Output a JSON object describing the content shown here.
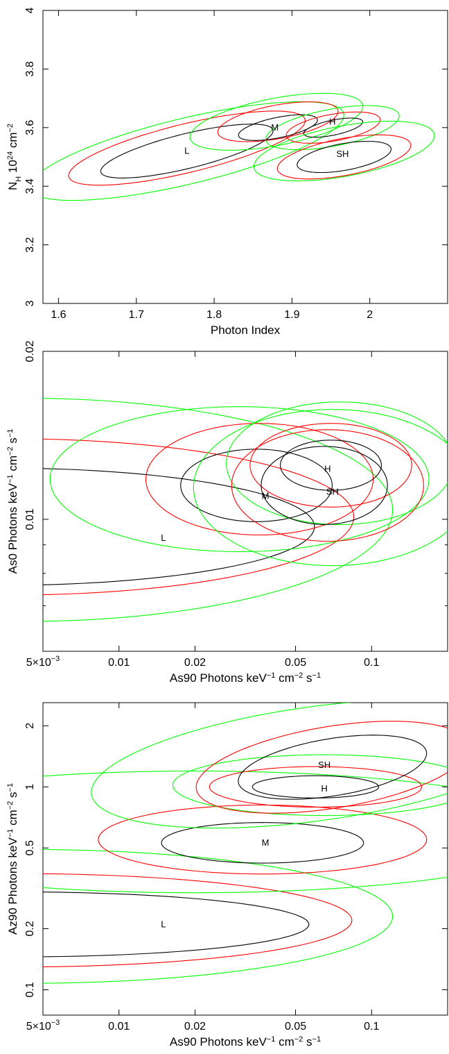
{
  "colors": {
    "inner": "#000000",
    "middle": "#ff0000",
    "outer": "#00ff00"
  },
  "chart_data": [
    {
      "type": "contour",
      "xscale": "linear",
      "yscale": "linear",
      "xlim": [
        1.58,
        2.1
      ],
      "ylim": [
        3.0,
        4.0
      ],
      "xlabel": "Photon Index",
      "ylabel_parts": [
        "N",
        "H",
        " 10",
        "24",
        " cm",
        "−2"
      ],
      "xticks": [
        1.6,
        1.7,
        1.8,
        1.9,
        2.0
      ],
      "xtick_labels": [
        "1.6",
        "1.7",
        "1.8",
        "1.9",
        "2"
      ],
      "yticks": [
        3.0,
        3.2,
        3.4,
        3.6,
        3.8,
        4.0
      ],
      "ytick_labels": [
        "3",
        "3.2",
        "3.4",
        "3.6",
        "3.8",
        "4"
      ],
      "regions": [
        {
          "label": "L",
          "label_x": 1.765,
          "label_y": 3.52,
          "contours": {
            "inner": [
              1.765,
              3.52,
              0.135,
              0.05,
              38
            ],
            "middle": [
              1.765,
              3.53,
              0.185,
              0.07,
              38
            ],
            "outer": [
              1.765,
              3.52,
              0.245,
              0.095,
              38
            ]
          }
        },
        {
          "label": "M",
          "label_x": 1.878,
          "label_y": 3.6,
          "contours": {
            "inner": [
              1.882,
              3.6,
              0.06,
              0.03,
              38
            ],
            "middle": [
              1.882,
              3.62,
              0.09,
              0.05,
              38
            ],
            "outer": [
              1.88,
              3.62,
              0.13,
              0.07,
              38
            ]
          }
        },
        {
          "label": "H",
          "label_x": 1.952,
          "label_y": 3.62,
          "contours": {
            "inner": [
              1.953,
              3.6,
              0.045,
              0.022,
              38
            ],
            "middle": [
              1.953,
              3.6,
              0.07,
              0.04,
              38
            ],
            "outer": [
              1.952,
              3.6,
              0.1,
              0.055,
              38
            ]
          }
        },
        {
          "label": "SH",
          "label_x": 1.965,
          "label_y": 3.51,
          "contours": {
            "inner": [
              1.967,
              3.5,
              0.07,
              0.04,
              38
            ],
            "middle": [
              1.967,
              3.5,
              0.1,
              0.055,
              38
            ],
            "outer": [
              1.967,
              3.52,
              0.135,
              0.075,
              38
            ]
          }
        }
      ]
    },
    {
      "type": "contour",
      "xscale": "log",
      "yscale": "log",
      "xlim": [
        0.005,
        0.2
      ],
      "ylim": [
        0.0058,
        0.02
      ],
      "xlabel_parts": [
        "As90 Photons keV",
        "−1",
        "  cm",
        "−2",
        "  s",
        "−1"
      ],
      "ylabel_parts": [
        "As0 Photons keV",
        "−1",
        "  cm",
        "−2",
        "  s",
        "−1"
      ],
      "xticks": [
        0.005,
        0.01,
        0.02,
        0.05,
        0.1
      ],
      "xtick_labels": [
        "5×10",
        "0.01",
        "0.02",
        "0.05",
        "0.1"
      ],
      "xtick_sup": [
        "−3",
        "",
        "",
        "",
        ""
      ],
      "yticks": [
        0.01,
        0.02
      ],
      "ytick_labels": [
        "0.01",
        "0.02"
      ],
      "minor_yticks": [
        0.007,
        0.008,
        0.009
      ],
      "regions": [
        {
          "label": "L",
          "label_x": 0.015,
          "label_y": 0.00925,
          "contours": {
            "inner": [
              0.0035,
              0.0097,
              1.23,
              0.105,
              0
            ],
            "middle": [
              0.0038,
              0.0101,
              1.35,
              0.14,
              0
            ],
            "outer": [
              0.0043,
              0.0104,
              1.45,
              0.2,
              0
            ]
          }
        },
        {
          "label": "M",
          "label_x": 0.038,
          "label_y": 0.011,
          "contours": {
            "inner": [
              0.035,
              0.0115,
              0.3,
              0.065,
              0
            ],
            "middle": [
              0.036,
              0.0118,
              0.45,
              0.1,
              0
            ],
            "outer": [
              0.03,
              0.0118,
              0.75,
              0.13,
              0
            ]
          }
        },
        {
          "label": "H",
          "label_x": 0.067,
          "label_y": 0.0123,
          "contours": {
            "inner": [
              0.069,
              0.0125,
              0.2,
              0.045,
              0
            ],
            "middle": [
              0.069,
              0.0125,
              0.32,
              0.075,
              0
            ],
            "outer": [
              0.075,
              0.0126,
              0.45,
              0.11,
              0
            ]
          }
        },
        {
          "label": "SH",
          "label_x": 0.07,
          "label_y": 0.0112,
          "contours": {
            "inner": [
              0.065,
              0.0115,
              0.25,
              0.07,
              0
            ],
            "middle": [
              0.067,
              0.0115,
              0.38,
              0.1,
              0
            ],
            "outer": [
              0.07,
              0.0114,
              0.55,
              0.14,
              0
            ]
          }
        }
      ]
    },
    {
      "type": "contour",
      "xscale": "log",
      "yscale": "log",
      "xlim": [
        0.005,
        0.2
      ],
      "ylim": [
        0.075,
        2.6
      ],
      "xlabel_parts": [
        "As90 Photons keV",
        "−1",
        "  cm",
        "−2",
        "  s",
        "−1"
      ],
      "ylabel_parts": [
        "Az90 Photons keV",
        "−1",
        "  cm",
        "−2",
        "  s",
        "−1"
      ],
      "xticks": [
        0.005,
        0.01,
        0.02,
        0.05,
        0.1
      ],
      "xtick_labels": [
        "5×10",
        "0.01",
        "0.02",
        "0.05",
        "0.1"
      ],
      "xtick_sup": [
        "−3",
        "",
        "",
        "",
        ""
      ],
      "yticks": [
        0.1,
        0.2,
        0.5,
        1,
        2
      ],
      "ytick_labels": [
        "0.1",
        "0.2",
        "0.5",
        "1",
        "2"
      ],
      "regions": [
        {
          "label": "L",
          "label_x": 0.015,
          "label_y": 0.21,
          "contours": {
            "inner": [
              0.004,
              0.21,
              1.15,
              0.16,
              0
            ],
            "middle": [
              0.004,
              0.22,
              1.32,
              0.23,
              0
            ],
            "outer": [
              0.0043,
              0.23,
              1.45,
              0.33,
              0
            ]
          }
        },
        {
          "label": "M",
          "label_x": 0.038,
          "label_y": 0.53,
          "contours": {
            "inner": [
              0.037,
              0.53,
              0.4,
              0.1,
              0
            ],
            "middle": [
              0.037,
              0.55,
              0.65,
              0.17,
              0
            ],
            "outer": [
              0.02,
              0.6,
              1.5,
              0.3,
              0
            ]
          }
        },
        {
          "label": "H",
          "label_x": 0.065,
          "label_y": 0.98,
          "contours": {
            "inner": [
              0.06,
              1.0,
              0.25,
              0.055,
              0
            ],
            "middle": [
              0.06,
              1.0,
              0.42,
              0.1,
              0
            ],
            "outer": [
              0.065,
              1.02,
              0.6,
              0.15,
              0
            ]
          }
        },
        {
          "label": "SH",
          "label_x": 0.065,
          "label_y": 1.28,
          "contours": {
            "inner": [
              0.07,
              1.25,
              0.38,
              0.14,
              12
            ],
            "middle": [
              0.07,
              1.25,
              0.55,
              0.2,
              12
            ],
            "outer": [
              0.06,
              1.3,
              0.9,
              0.28,
              10
            ]
          }
        }
      ]
    }
  ]
}
